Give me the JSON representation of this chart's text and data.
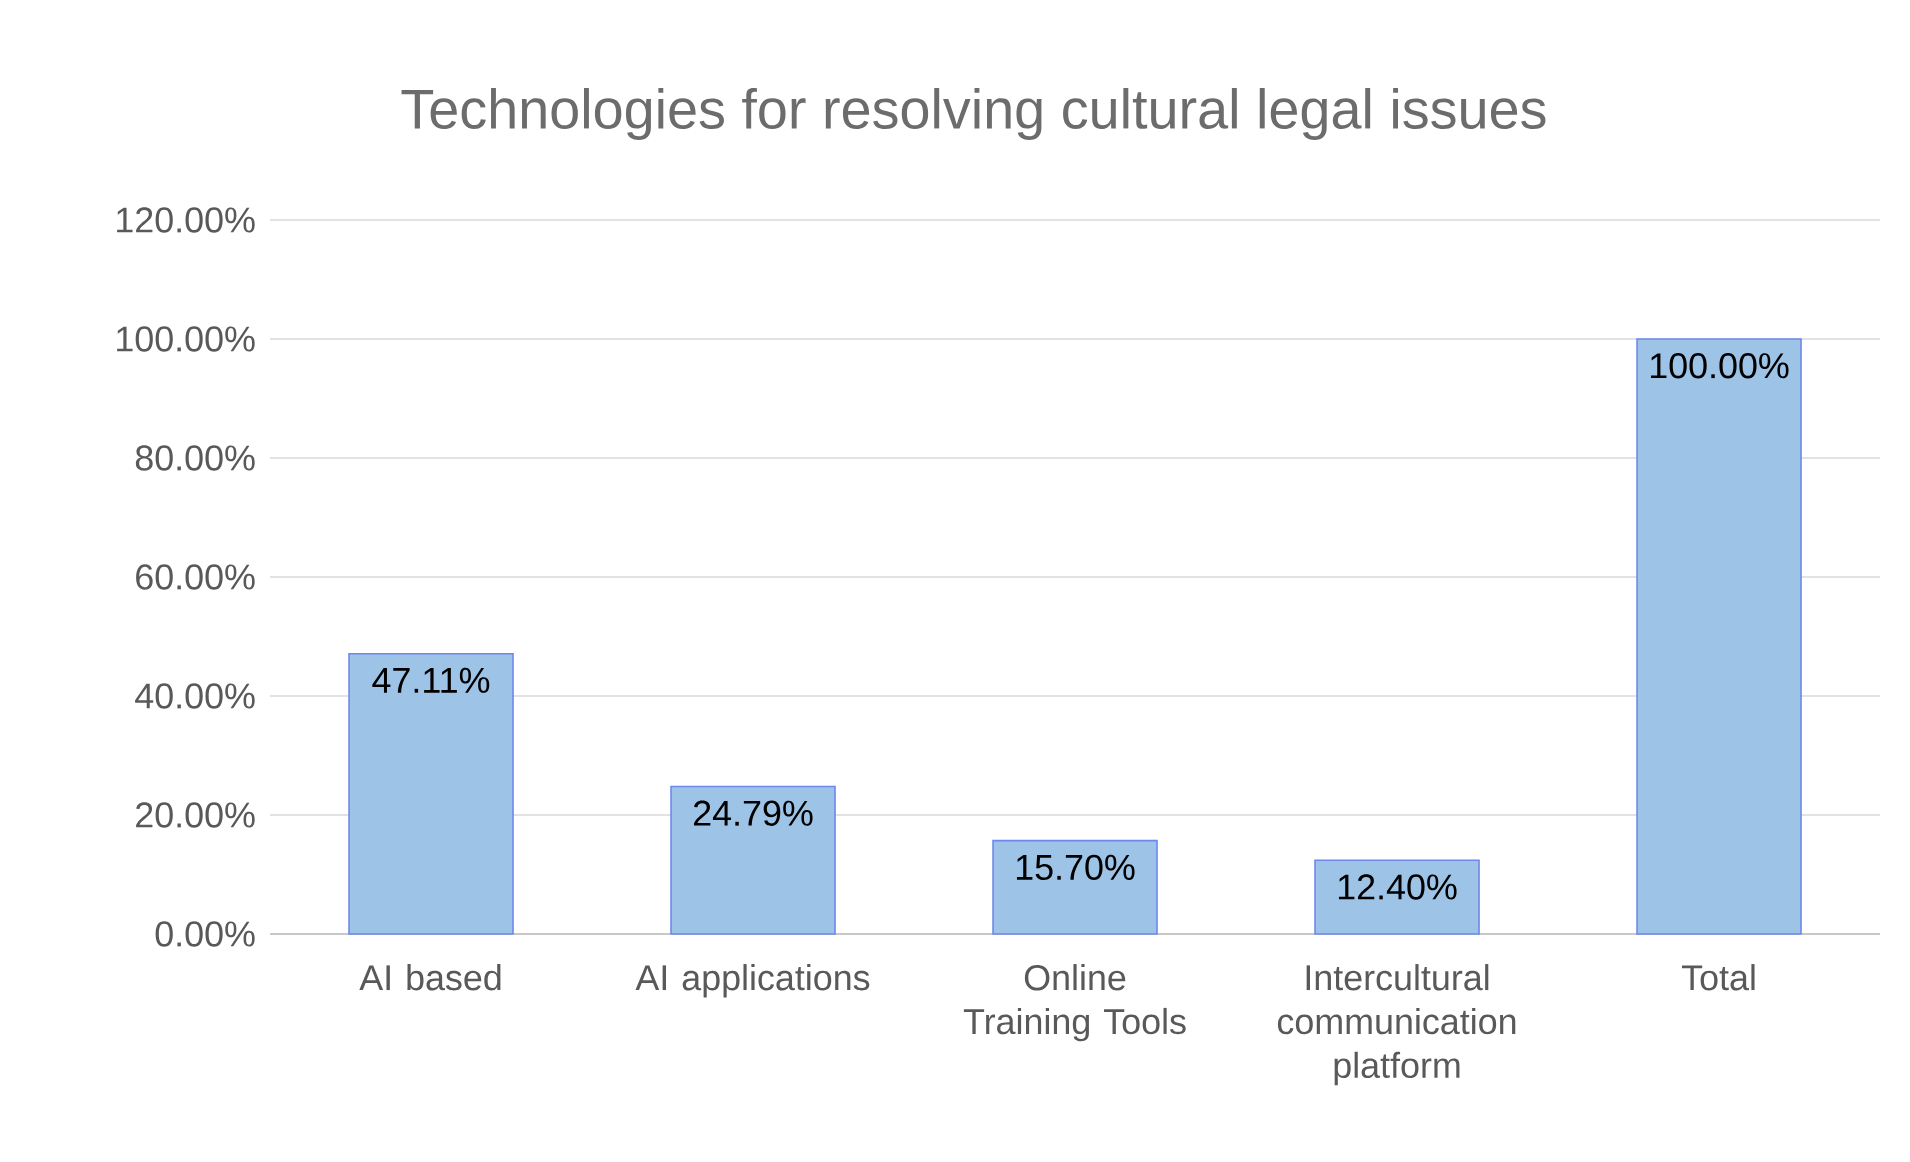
{
  "chart_data": {
    "type": "bar",
    "title": "Technologies for resolving cultural legal issues",
    "categories": [
      "AI based",
      "AI applications",
      "Online Training Tools",
      "Intercultural communication platform",
      "Total"
    ],
    "values": [
      47.11,
      24.79,
      15.7,
      12.4,
      100.0
    ],
    "value_labels": [
      "47.11%",
      "24.79%",
      "15.70%",
      "12.40%",
      "100.00%"
    ],
    "color": "#9dc3e6",
    "ylim": [
      0,
      120
    ],
    "yticks": [
      {
        "value": 0,
        "label": "0.00%"
      },
      {
        "value": 20,
        "label": "20.00%"
      },
      {
        "value": 40,
        "label": "40.00%"
      },
      {
        "value": 60,
        "label": "60.00%"
      },
      {
        "value": 80,
        "label": "80.00%"
      },
      {
        "value": 100,
        "label": "100.00%"
      },
      {
        "value": 120,
        "label": "120.00%"
      }
    ],
    "grid": "y"
  }
}
